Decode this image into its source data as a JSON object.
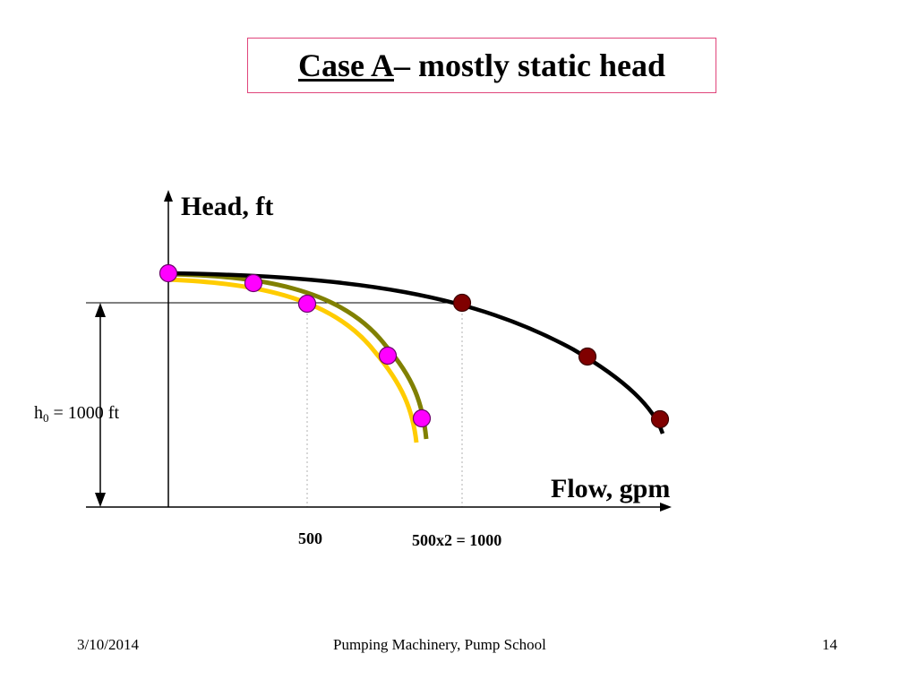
{
  "slide": {
    "title_underlined": "Case A",
    "title_rest": " – mostly static head",
    "border_color": "#e0457b"
  },
  "axes": {
    "y_label": "Head, ft",
    "x_label": "Flow, gpm",
    "tick_500": "500",
    "tick_1000": "500x2 = 1000"
  },
  "annotation": {
    "h0_base": "h",
    "h0_sub": "0",
    "h0_rest": " = 1000 ft"
  },
  "colors": {
    "single_pump_curve_outer": "#808000",
    "single_pump_curve_inner": "#ffcc00",
    "parallel_pumps_curve": "#000000",
    "single_pump_points": "#ff00ff",
    "parallel_pumps_points": "#800000"
  },
  "footer": {
    "date": "3/10/2014",
    "center": "Pumping Machinery, Pump School",
    "page": "14"
  }
}
